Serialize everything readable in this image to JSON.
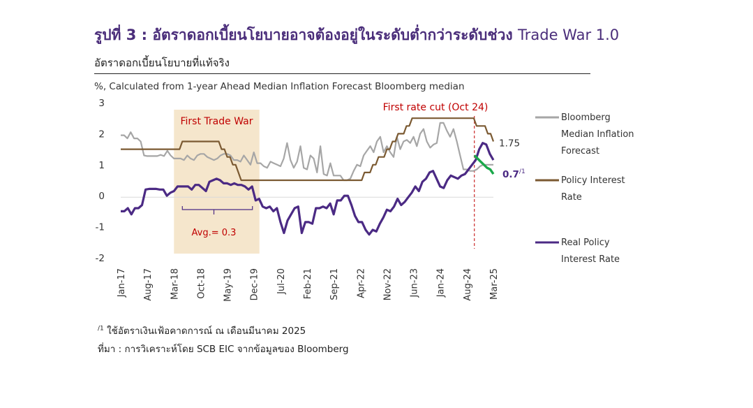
{
  "header": {
    "title_prefix": "รูปที่ 3 : อัตราดอกเบี้ยนโยบายอาจต้องอยู่ในระดับต่ำกว่าระดับช่วง",
    "title_suffix": "Trade War 1.0",
    "subtitle": "อัตราดอกเบี้ยนโยบายที่แท้จริง",
    "unit_label": "%, Calculated from 1-year Ahead Median Inflation Forecast Bloomberg median"
  },
  "notes": {
    "footnote_mark": "/1",
    "footnote": "ใช้อัตราเงินเฟ้อคาดการณ์ ณ เดือนมีนาคม 2025",
    "source": "ที่มา : การวิเคราะห์โดย SCB EIC จากข้อมูลของ Bloomberg"
  },
  "chart_data": {
    "type": "line",
    "ylim": [
      -2,
      3
    ],
    "yticks": [
      "3",
      "2",
      "1",
      "0",
      "-1",
      "-2"
    ],
    "xticks": [
      "Jan-17",
      "Aug-17",
      "Mar-18",
      "Oct-18",
      "May-19",
      "Dec-19",
      "Jul-20",
      "Feb-21",
      "Sep-21",
      "Apr-22",
      "Nov-22",
      "Jun-23",
      "Jan-24",
      "Aug-24",
      "Mar-25"
    ],
    "x_start": "Jan-17",
    "shaded_region": {
      "start": "Mar-18",
      "end": "Dec-19",
      "label": "First Trade War",
      "avg_label": "Avg.= 0.3",
      "color": "#f5e6cc"
    },
    "marker": {
      "at": "Oct-24",
      "label": "First rate cut (Oct 24)",
      "color": "#c00000"
    },
    "series": [
      {
        "name": "Bloomberg Median Inflation Forecast",
        "color": "#a6a6a6",
        "values": [
          1.95,
          1.95,
          1.85,
          2.05,
          1.85,
          1.85,
          1.75,
          1.3,
          1.28,
          1.28,
          1.28,
          1.28,
          1.32,
          1.28,
          1.45,
          1.3,
          1.2,
          1.2,
          1.2,
          1.15,
          1.3,
          1.2,
          1.15,
          1.3,
          1.35,
          1.35,
          1.25,
          1.2,
          1.15,
          1.2,
          1.3,
          1.35,
          1.35,
          1.3,
          1.15,
          1.15,
          1.1,
          1.3,
          1.15,
          1.0,
          1.4,
          1.05,
          1.05,
          0.95,
          0.9,
          1.1,
          1.05,
          1.0,
          0.95,
          1.2,
          1.7,
          1.15,
          0.9,
          1.1,
          1.6,
          0.9,
          0.85,
          1.3,
          1.2,
          0.75,
          1.6,
          0.7,
          0.65,
          1.05,
          0.65,
          0.65,
          0.65,
          0.5,
          0.5,
          0.55,
          0.8,
          1.0,
          0.95,
          1.3,
          1.45,
          1.6,
          1.4,
          1.75,
          1.9,
          1.4,
          1.6,
          1.4,
          1.25,
          1.9,
          1.5,
          1.75,
          1.8,
          1.7,
          1.9,
          1.6,
          2.0,
          2.15,
          1.75,
          1.55,
          1.65,
          1.7,
          2.35,
          2.35,
          2.1,
          1.9,
          2.15,
          1.75,
          1.3,
          0.85,
          0.85,
          0.8,
          0.8,
          0.85,
          0.95,
          1.0,
          1.0,
          1.0,
          1.0
        ],
        "end_label": ""
      },
      {
        "name": "Policy Interest Rate",
        "color": "#7b5a32",
        "values": [
          1.5,
          1.5,
          1.5,
          1.5,
          1.5,
          1.5,
          1.5,
          1.5,
          1.5,
          1.5,
          1.5,
          1.5,
          1.5,
          1.5,
          1.5,
          1.5,
          1.5,
          1.5,
          1.5,
          1.5,
          1.5,
          1.5,
          1.75,
          1.75,
          1.75,
          1.75,
          1.75,
          1.75,
          1.75,
          1.75,
          1.75,
          1.75,
          1.75,
          1.75,
          1.75,
          1.75,
          1.5,
          1.5,
          1.25,
          1.25,
          1.0,
          1.0,
          0.75,
          0.5,
          0.5,
          0.5,
          0.5,
          0.5,
          0.5,
          0.5,
          0.5,
          0.5,
          0.5,
          0.5,
          0.5,
          0.5,
          0.5,
          0.5,
          0.5,
          0.5,
          0.5,
          0.5,
          0.5,
          0.5,
          0.5,
          0.5,
          0.5,
          0.5,
          0.5,
          0.5,
          0.5,
          0.5,
          0.5,
          0.5,
          0.5,
          0.5,
          0.5,
          0.5,
          0.5,
          0.5,
          0.5,
          0.5,
          0.5,
          0.5,
          0.5,
          0.5,
          0.5,
          0.75,
          0.75,
          0.75,
          1.0,
          1.0,
          1.25,
          1.25,
          1.25,
          1.5,
          1.5,
          1.75,
          1.75,
          2.0,
          2.0,
          2.0,
          2.25,
          2.25,
          2.5,
          2.5,
          2.5,
          2.5,
          2.5,
          2.5,
          2.5,
          2.5,
          2.5,
          2.5,
          2.5,
          2.5,
          2.5,
          2.5,
          2.5,
          2.5,
          2.5,
          2.5,
          2.5,
          2.5,
          2.5,
          2.5,
          2.5,
          2.25,
          2.25,
          2.25,
          2.25,
          2.0,
          2.0,
          1.75
        ],
        "end_label": "1.75"
      },
      {
        "name": "Real Policy Interest Rate",
        "color": "#4b2a84",
        "values": [
          -0.5,
          -0.5,
          -0.4,
          -0.6,
          -0.4,
          -0.4,
          -0.3,
          0.2,
          0.22,
          0.22,
          0.22,
          0.2,
          0.2,
          0.0,
          0.1,
          0.15,
          0.3,
          0.3,
          0.3,
          0.3,
          0.2,
          0.35,
          0.35,
          0.25,
          0.15,
          0.45,
          0.5,
          0.55,
          0.5,
          0.4,
          0.4,
          0.35,
          0.4,
          0.35,
          0.35,
          0.3,
          0.2,
          0.3,
          -0.15,
          -0.1,
          -0.35,
          -0.4,
          -0.35,
          -0.5,
          -0.4,
          -0.85,
          -1.2,
          -0.8,
          -0.6,
          -0.4,
          -0.35,
          -1.2,
          -0.85,
          -0.85,
          -0.9,
          -0.4,
          -0.4,
          -0.35,
          -0.4,
          -0.25,
          -0.6,
          -0.15,
          -0.15,
          0.0,
          0.0,
          -0.3,
          -0.65,
          -0.85,
          -0.85,
          -1.1,
          -1.25,
          -1.1,
          -1.15,
          -0.9,
          -0.7,
          -0.45,
          -0.5,
          -0.35,
          -0.1,
          -0.3,
          -0.2,
          -0.05,
          0.1,
          0.3,
          0.15,
          0.45,
          0.55,
          0.75,
          0.8,
          0.55,
          0.3,
          0.25,
          0.5,
          0.65,
          0.6,
          0.55,
          0.65,
          0.7,
          0.85,
          1.0,
          1.15,
          1.5,
          1.7,
          1.65,
          1.35,
          1.15
        ],
        "end_label": "0.7/1"
      }
    ],
    "legend": [
      "Bloomberg Median Inflation Forecast",
      "Policy Interest Rate",
      "Real Policy Interest Rate"
    ],
    "forecast_segment": {
      "color": "#1aa84a",
      "values": [
        1.3,
        1.2,
        1.1,
        1.0,
        0.9,
        0.85,
        0.7
      ]
    }
  }
}
